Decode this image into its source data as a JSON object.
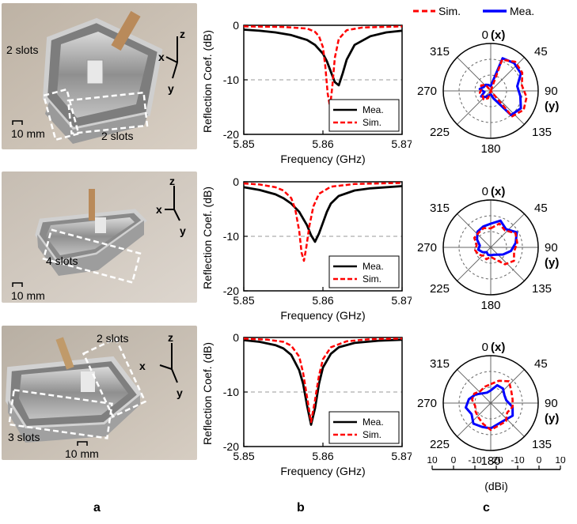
{
  "photos": [
    {
      "labels": [
        "2 slots",
        "2 slots",
        "10 mm"
      ],
      "axes": [
        "z",
        "x",
        "y"
      ]
    },
    {
      "labels": [
        "4 slots",
        "10 mm"
      ],
      "axes": [
        "z",
        "x",
        "y"
      ]
    },
    {
      "labels": [
        "2 slots",
        "3 slots",
        "10 mm"
      ],
      "axes": [
        "z",
        "x",
        "y"
      ]
    }
  ],
  "top_legend": {
    "sim": "Sim.",
    "mea": "Mea."
  },
  "column_labels": [
    "a",
    "b",
    "c"
  ],
  "polar_scale": {
    "ticks": [
      "10",
      "0",
      "-10",
      "-20",
      "-10",
      "0",
      "10"
    ],
    "unit": "(dBi)"
  },
  "polar_angle_labels": {
    "a0": "0",
    "a0_axis": "(x)",
    "a45": "45",
    "a90": "90",
    "a90_axis": "(y)",
    "a135": "135",
    "a180": "180",
    "a225": "225",
    "a270": "270",
    "a315": "315"
  },
  "chart_data": [
    {
      "type": "line",
      "xlabel": "Frequency (GHz)",
      "ylabel": "Reflection Coef. (dB)",
      "xlim": [
        5.85,
        5.87
      ],
      "ylim": [
        -20,
        0
      ],
      "xticks": [
        "5.85",
        "5.86",
        "5.87"
      ],
      "yticks": [
        "0",
        "-10",
        "-20"
      ],
      "reference_line": -10,
      "series": [
        {
          "name": "Mea.",
          "color": "#000000",
          "style": "solid",
          "x": [
            5.85,
            5.852,
            5.854,
            5.856,
            5.858,
            5.859,
            5.86,
            5.8605,
            5.861,
            5.8615,
            5.862,
            5.8625,
            5.863,
            5.864,
            5.866,
            5.868,
            5.87
          ],
          "y": [
            -0.8,
            -1.0,
            -1.3,
            -1.8,
            -2.7,
            -3.6,
            -5.2,
            -6.6,
            -8.5,
            -10.4,
            -11.0,
            -8.8,
            -6.3,
            -3.6,
            -2.0,
            -1.3,
            -1.0
          ]
        },
        {
          "name": "Sim.",
          "color": "#ff0000",
          "style": "dashed",
          "x": [
            5.85,
            5.855,
            5.858,
            5.859,
            5.8595,
            5.86,
            5.8603,
            5.8606,
            5.8609,
            5.8612,
            5.8615,
            5.862,
            5.863,
            5.865,
            5.87
          ],
          "y": [
            -0.2,
            -0.3,
            -0.6,
            -1.2,
            -2.0,
            -4.0,
            -7.5,
            -12.5,
            -15.0,
            -11.0,
            -6.0,
            -2.5,
            -0.9,
            -0.4,
            -0.2
          ]
        }
      ]
    },
    {
      "type": "line",
      "xlabel": "Frequency (GHz)",
      "ylabel": "Reflection Coef. (dB)",
      "xlim": [
        5.85,
        5.87
      ],
      "ylim": [
        -20,
        0
      ],
      "xticks": [
        "5.85",
        "5.86",
        "5.87"
      ],
      "yticks": [
        "0",
        "-10",
        "-20"
      ],
      "reference_line": -10,
      "series": [
        {
          "name": "Mea.",
          "color": "#000000",
          "style": "solid",
          "x": [
            5.85,
            5.852,
            5.854,
            5.855,
            5.856,
            5.857,
            5.858,
            5.8585,
            5.859,
            5.8595,
            5.86,
            5.8605,
            5.861,
            5.862,
            5.864,
            5.866,
            5.87
          ],
          "y": [
            -1.0,
            -1.5,
            -2.3,
            -3.0,
            -4.0,
            -5.5,
            -8.0,
            -9.8,
            -11.0,
            -9.5,
            -7.5,
            -5.5,
            -4.0,
            -2.6,
            -1.6,
            -1.2,
            -0.8
          ]
        },
        {
          "name": "Sim.",
          "color": "#ff0000",
          "style": "dashed",
          "x": [
            5.85,
            5.852,
            5.854,
            5.855,
            5.856,
            5.8565,
            5.857,
            5.8573,
            5.8576,
            5.8579,
            5.8583,
            5.8588,
            5.8595,
            5.861,
            5.864,
            5.87
          ],
          "y": [
            -0.3,
            -0.5,
            -1.0,
            -1.6,
            -3.0,
            -5.0,
            -9.0,
            -13.0,
            -14.5,
            -12.0,
            -8.0,
            -4.5,
            -2.2,
            -0.9,
            -0.4,
            -0.2
          ]
        }
      ]
    },
    {
      "type": "line",
      "xlabel": "Frequency (GHz)",
      "ylabel": "Reflection Coef. (dB)",
      "xlim": [
        5.85,
        5.87
      ],
      "ylim": [
        -20,
        0
      ],
      "xticks": [
        "5.85",
        "5.86",
        "5.87"
      ],
      "yticks": [
        "0",
        "-10",
        "-20"
      ],
      "reference_line": -10,
      "series": [
        {
          "name": "Mea.",
          "color": "#000000",
          "style": "solid",
          "x": [
            5.85,
            5.852,
            5.854,
            5.855,
            5.856,
            5.857,
            5.8575,
            5.858,
            5.8585,
            5.859,
            5.8595,
            5.86,
            5.861,
            5.862,
            5.864,
            5.867,
            5.87
          ],
          "y": [
            -0.5,
            -0.8,
            -1.4,
            -2.0,
            -3.2,
            -6.0,
            -8.5,
            -12.5,
            -16.0,
            -13.0,
            -8.5,
            -5.5,
            -3.0,
            -1.8,
            -1.0,
            -0.6,
            -0.4
          ]
        },
        {
          "name": "Sim.",
          "color": "#ff0000",
          "style": "dashed",
          "x": [
            5.85,
            5.853,
            5.855,
            5.856,
            5.857,
            5.8575,
            5.858,
            5.8585,
            5.859,
            5.8595,
            5.86,
            5.861,
            5.863,
            5.866,
            5.87
          ],
          "y": [
            -0.2,
            -0.4,
            -0.8,
            -1.5,
            -3.5,
            -6.5,
            -11.0,
            -15.5,
            -11.5,
            -7.0,
            -4.0,
            -1.8,
            -0.7,
            -0.3,
            -0.2
          ]
        }
      ]
    },
    {
      "type": "polar",
      "rlim_dBi": [
        -20,
        10
      ],
      "angle_labels": [
        "0 (x)",
        "45",
        "90 (y)",
        "135",
        "180",
        "225",
        "270",
        "315"
      ],
      "series": [
        {
          "name": "Sim.",
          "color": "#ff0000",
          "style": "dashed",
          "angles": [
            0,
            20,
            40,
            60,
            80,
            100,
            120,
            140,
            160,
            180,
            200,
            220,
            240,
            260,
            280,
            300,
            320,
            340
          ],
          "gain_dBi": [
            -20,
            1,
            4,
            3,
            0,
            3,
            4,
            1,
            -20,
            -20,
            -15,
            -13,
            -14,
            -13,
            -14,
            -13,
            -15,
            -20
          ]
        },
        {
          "name": "Mea.",
          "color": "#0000ff",
          "style": "solid",
          "angles": [
            0,
            20,
            40,
            60,
            80,
            100,
            120,
            140,
            160,
            180,
            200,
            220,
            240,
            260,
            280,
            300,
            320,
            340
          ],
          "gain_dBi": [
            -17,
            2,
            3,
            2,
            -3,
            -1,
            2,
            0,
            -15,
            -18,
            -17,
            -15,
            -13,
            -16,
            -13,
            -15,
            -15,
            -16
          ]
        }
      ]
    },
    {
      "type": "polar",
      "rlim_dBi": [
        -20,
        10
      ],
      "angle_labels": [
        "0 (x)",
        "45",
        "90 (y)",
        "135",
        "180",
        "225",
        "270",
        "315"
      ],
      "series": [
        {
          "name": "Sim.",
          "color": "#ff0000",
          "style": "dashed",
          "angles": [
            0,
            20,
            40,
            60,
            80,
            100,
            120,
            140,
            160,
            180,
            200,
            220,
            240,
            260,
            280,
            300,
            320,
            340
          ],
          "gain_dBi": [
            -8,
            -4,
            -6,
            -2,
            -3,
            -5,
            -3,
            -6,
            -12,
            -14,
            -12,
            -13,
            -11,
            -10,
            -11,
            -8,
            -8,
            -7
          ]
        },
        {
          "name": "Mea.",
          "color": "#0000ff",
          "style": "solid",
          "angles": [
            0,
            20,
            40,
            60,
            80,
            100,
            120,
            140,
            160,
            180,
            200,
            220,
            240,
            260,
            280,
            300,
            320,
            340
          ],
          "gain_dBi": [
            -5,
            -2,
            -5,
            -1,
            -4,
            -7,
            -11,
            -14,
            -15,
            -15,
            -15,
            -16,
            -14,
            -12,
            -13,
            -10,
            -7,
            -6
          ]
        }
      ]
    },
    {
      "type": "polar",
      "rlim_dBi": [
        -20,
        10
      ],
      "angle_labels": [
        "0 (x)",
        "45",
        "90 (y)",
        "135",
        "180",
        "225",
        "270",
        "315"
      ],
      "series": [
        {
          "name": "Sim.",
          "color": "#ff0000",
          "style": "dashed",
          "angles": [
            0,
            20,
            40,
            60,
            80,
            100,
            120,
            140,
            160,
            180,
            200,
            220,
            240,
            260,
            280,
            300,
            320,
            340
          ],
          "gain_dBi": [
            -8,
            -5,
            -2,
            -5,
            -6,
            -6,
            -8,
            -5,
            -5,
            -3,
            -6,
            -8,
            -9,
            -10,
            -8,
            -8,
            -10,
            -9
          ]
        },
        {
          "name": "Mea.",
          "color": "#0000ff",
          "style": "solid",
          "angles": [
            0,
            20,
            40,
            60,
            80,
            100,
            120,
            140,
            160,
            180,
            200,
            220,
            240,
            260,
            280,
            300,
            320,
            340
          ],
          "gain_dBi": [
            -12,
            -8,
            -8,
            -10,
            -10,
            -6,
            -4,
            -6,
            -6,
            -4,
            -4,
            -3,
            -6,
            -4,
            -6,
            -9,
            -12,
            -13
          ]
        }
      ]
    }
  ]
}
